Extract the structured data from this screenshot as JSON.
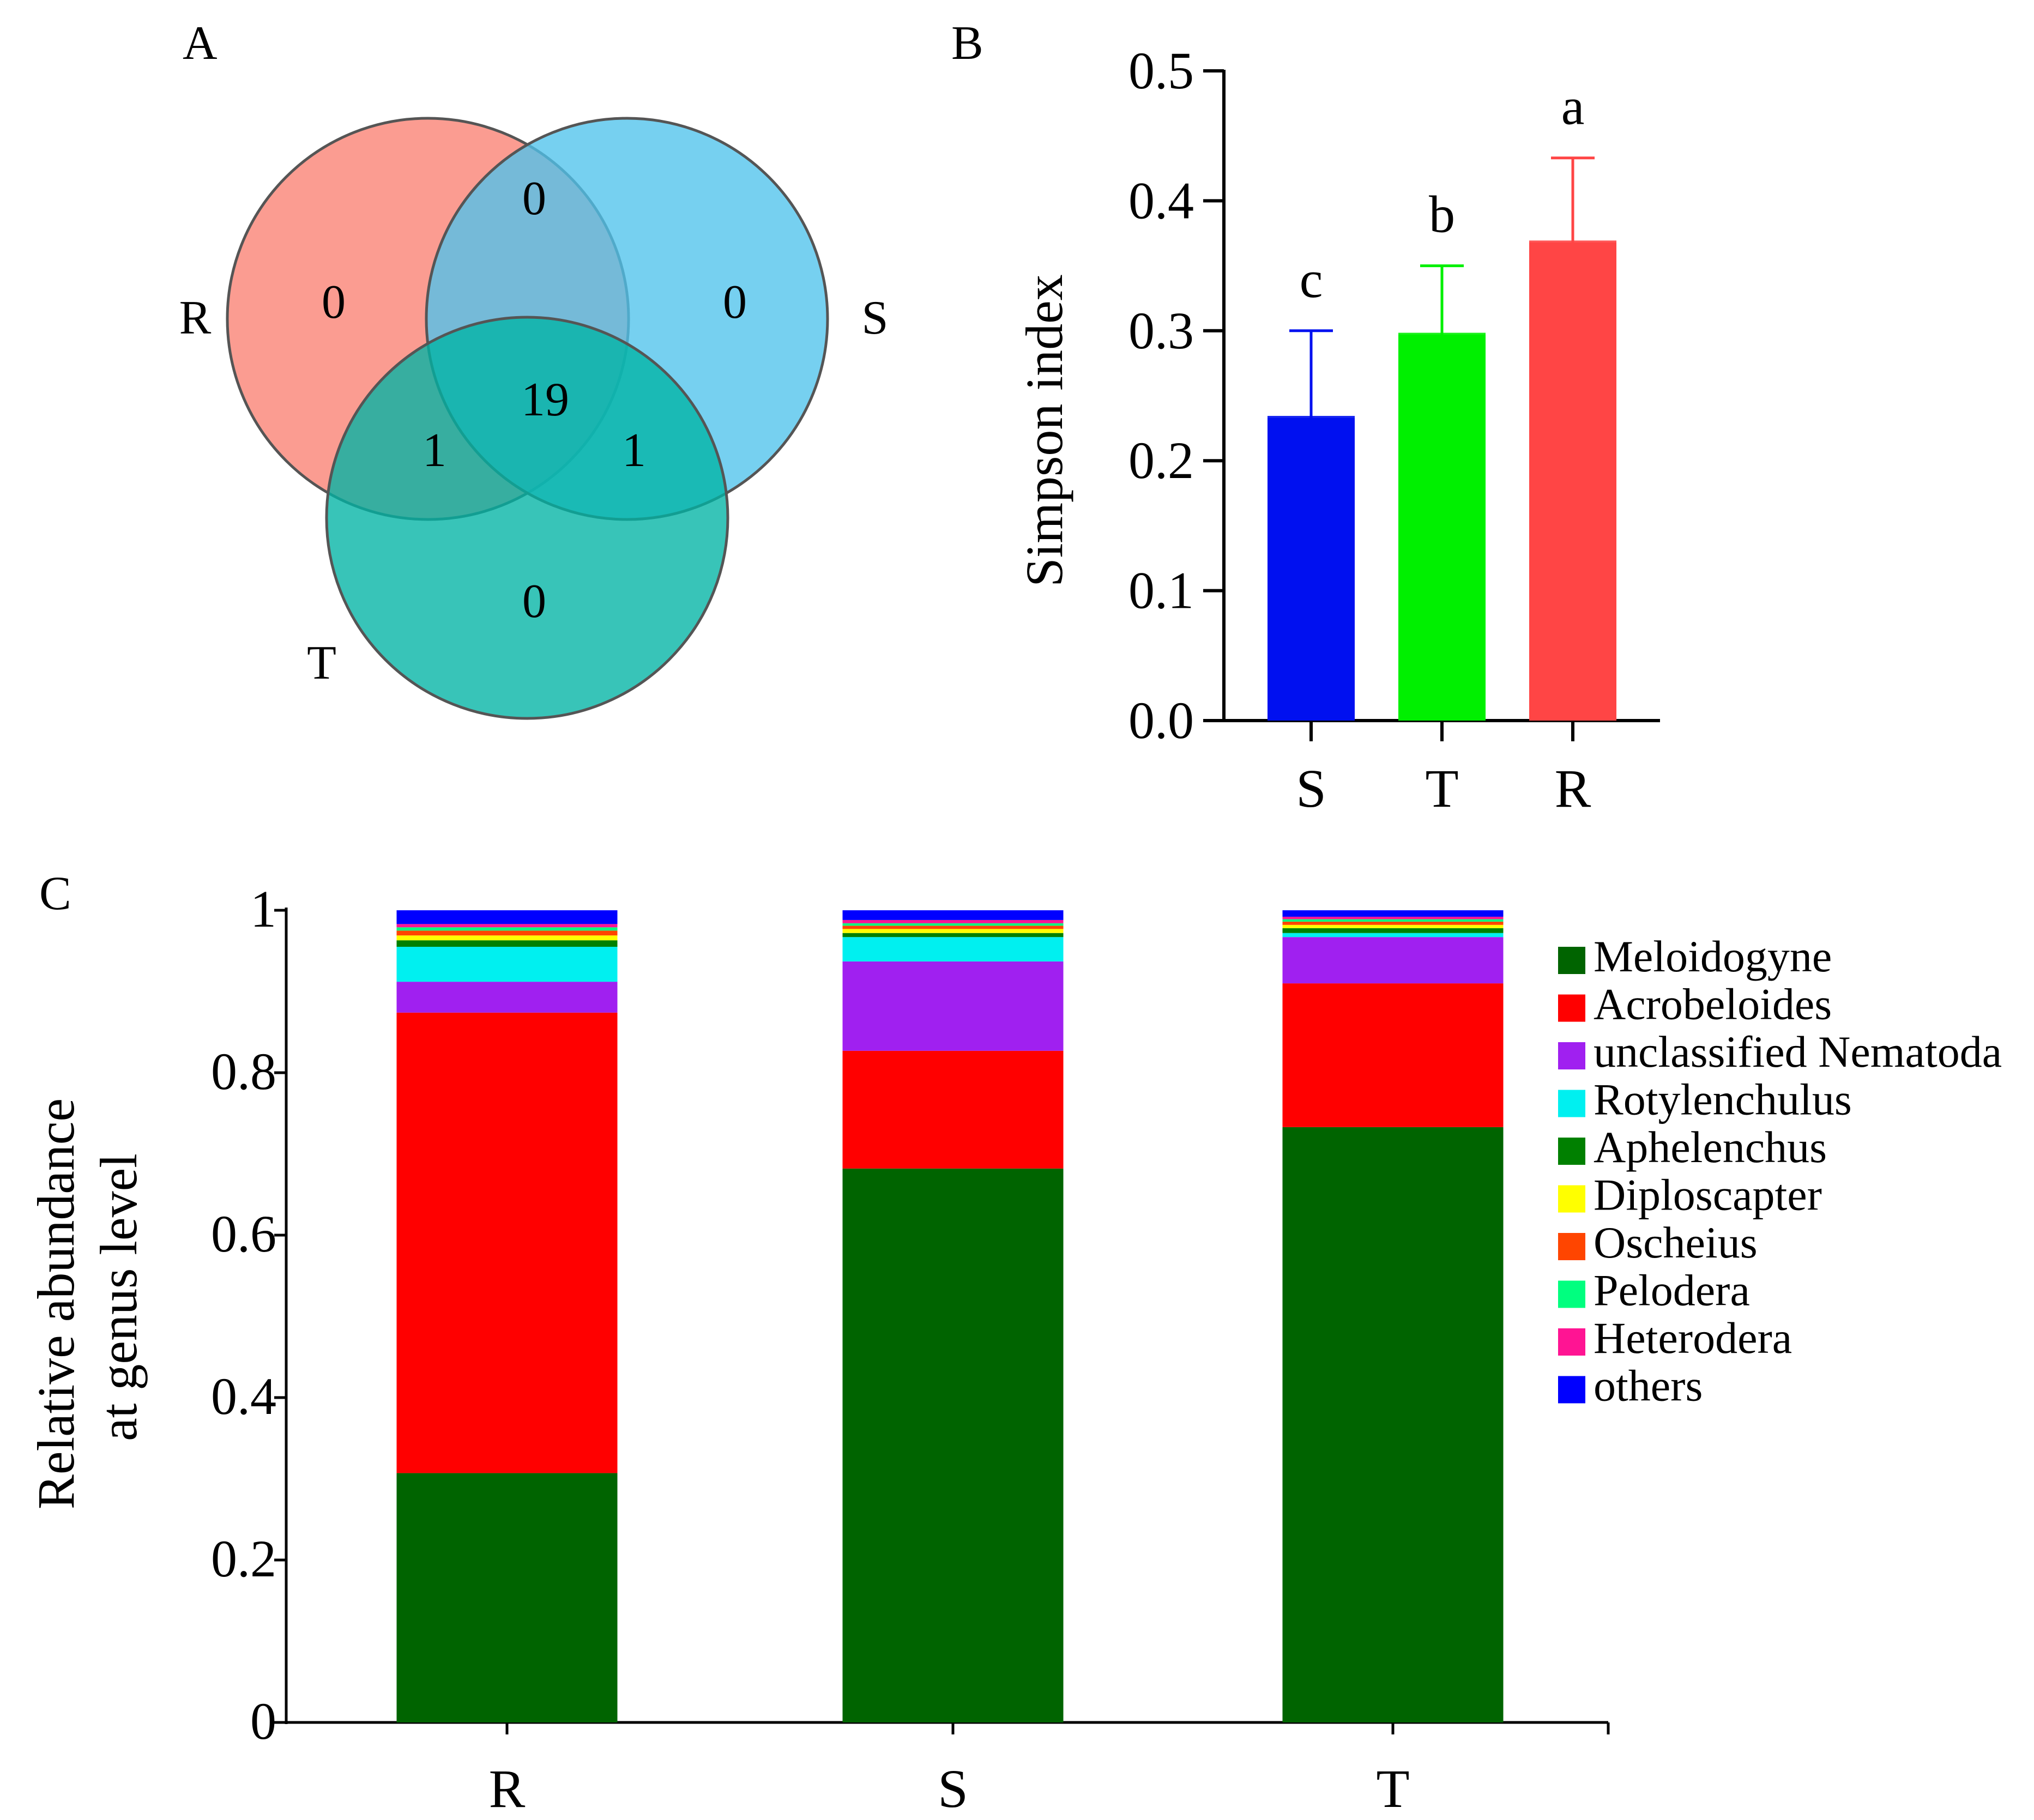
{
  "panels": {
    "a": "A",
    "b": "B",
    "c": "C"
  },
  "chart_data": [
    {
      "type": "venn",
      "sets": [
        "R",
        "S",
        "T"
      ],
      "colors": {
        "R": "#FA8072",
        "S": "#4FC3EC",
        "T": "#00B3A4"
      },
      "regions": {
        "R_only": "0",
        "S_only": "0",
        "T_only": "0",
        "R_S": "0",
        "R_T": "1",
        "S_T": "1",
        "R_S_T": "19"
      }
    },
    {
      "type": "bar",
      "title": "",
      "xlabel": "",
      "ylabel": "Simpson index",
      "categories": [
        "S",
        "T",
        "R"
      ],
      "values": [
        0.233,
        0.297,
        0.368
      ],
      "errors": [
        0.067,
        0.053,
        0.065
      ],
      "letters": [
        "c",
        "b",
        "a"
      ],
      "colors": [
        "#0010F0",
        "#00F000",
        "#FF4545"
      ],
      "ylim": [
        0,
        0.5
      ],
      "yticks": [
        "0.0",
        "0.1",
        "0.2",
        "0.3",
        "0.4",
        "0.5"
      ]
    },
    {
      "type": "stacked-bar",
      "ylabel_lines": [
        "Relative abundance",
        "at genus level"
      ],
      "categories": [
        "R",
        "S",
        "T"
      ],
      "ylim": [
        0,
        1
      ],
      "yticks": [
        "0",
        "0.2",
        "0.4",
        "0.6",
        "0.8",
        "1"
      ],
      "legend_position": "right",
      "series": [
        {
          "name": "Meloidogyne",
          "color": "#006400",
          "values": [
            0.307,
            0.682,
            0.733
          ]
        },
        {
          "name": "Acrobeloides",
          "color": "#FF0000",
          "values": [
            0.567,
            0.145,
            0.177
          ]
        },
        {
          "name": "unclassified Nematoda",
          "color": "#A020F0",
          "values": [
            0.038,
            0.11,
            0.057
          ]
        },
        {
          "name": "Rotylenchulus",
          "color": "#00F0F0",
          "values": [
            0.043,
            0.03,
            0.005
          ]
        },
        {
          "name": "Aphelenchus",
          "color": "#008000",
          "values": [
            0.008,
            0.005,
            0.006
          ]
        },
        {
          "name": "Diploscapter",
          "color": "#FFFF00",
          "values": [
            0.006,
            0.005,
            0.004
          ]
        },
        {
          "name": "Oscheius",
          "color": "#FF4500",
          "values": [
            0.006,
            0.004,
            0.004
          ]
        },
        {
          "name": "Pelodera",
          "color": "#00FF7F",
          "values": [
            0.004,
            0.003,
            0.003
          ]
        },
        {
          "name": "Heterodera",
          "color": "#FF1493",
          "values": [
            0.004,
            0.004,
            0.003
          ]
        },
        {
          "name": "others",
          "color": "#0000FF",
          "values": [
            0.017,
            0.012,
            0.008
          ]
        }
      ]
    }
  ]
}
